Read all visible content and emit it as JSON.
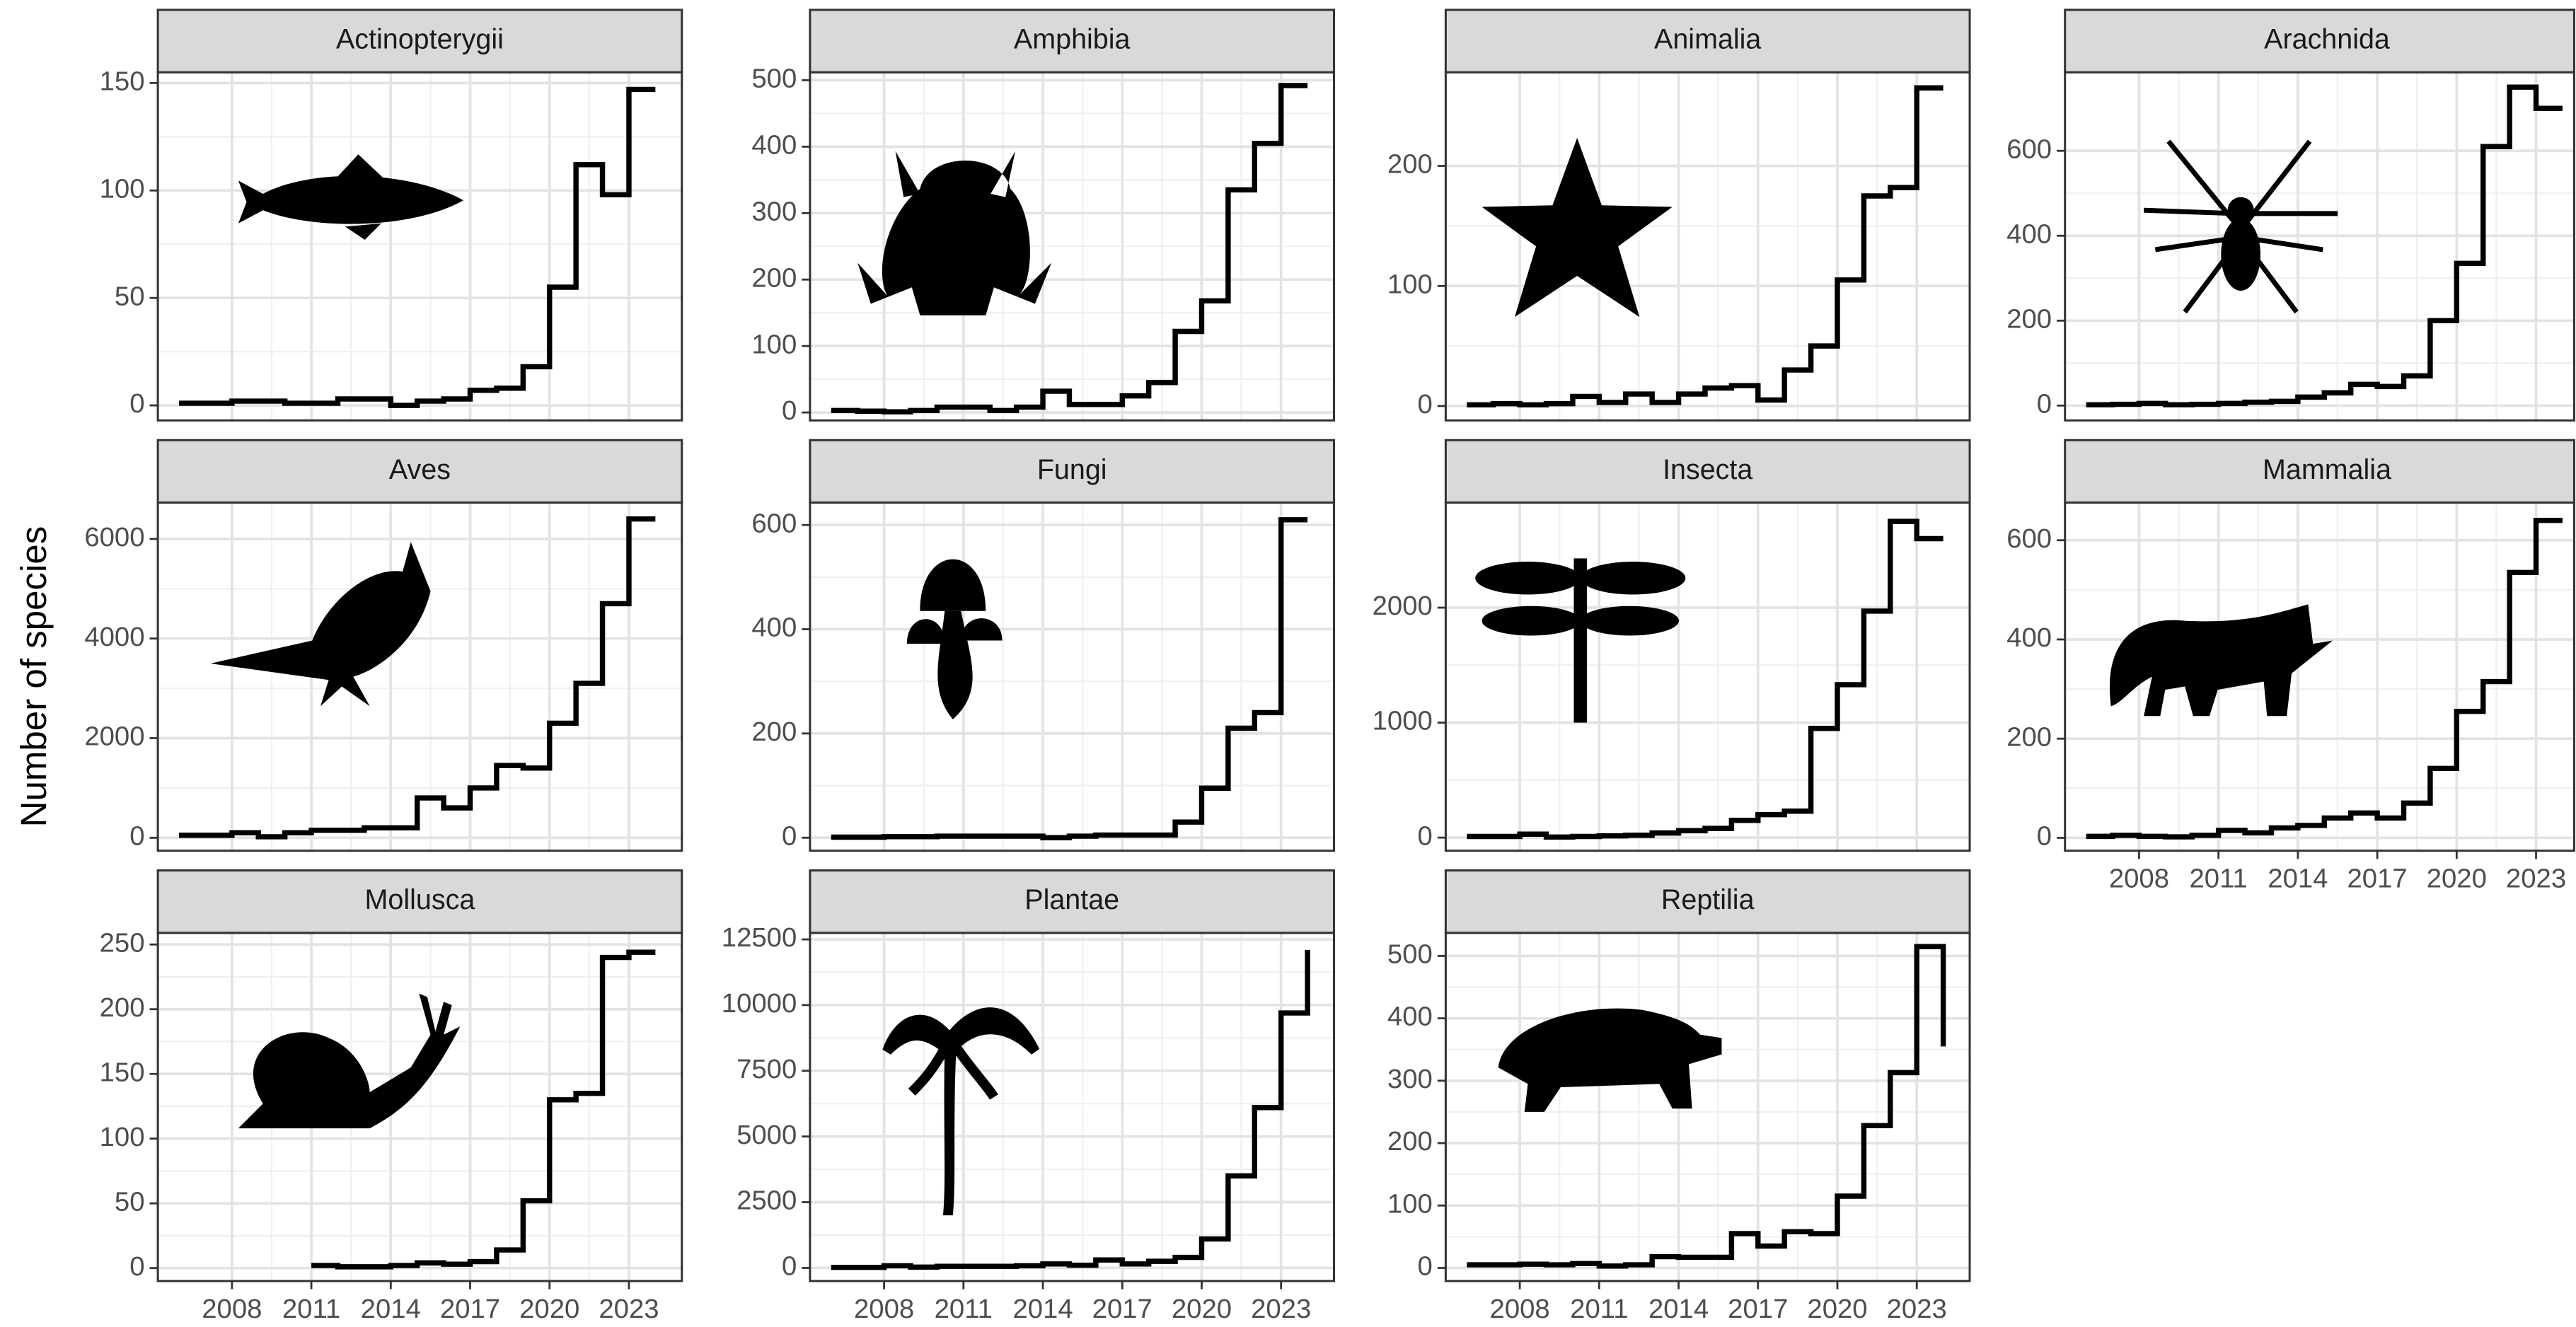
{
  "axis_title": "Number of species",
  "chart_data": [
    {
      "type": "line",
      "title": "Actinopterygii",
      "x": [
        2006,
        2007,
        2008,
        2009,
        2010,
        2011,
        2012,
        2013,
        2014,
        2015,
        2016,
        2017,
        2018,
        2019,
        2020,
        2021,
        2022,
        2023,
        2024
      ],
      "values": [
        1,
        1,
        2,
        2,
        1,
        1,
        3,
        3,
        0,
        2,
        3,
        7,
        8,
        18,
        55,
        112,
        98,
        147,
        147
      ],
      "color": "#000000",
      "xlim": [
        2005.2,
        2025.0
      ],
      "xticks": [
        2008,
        2011,
        2014,
        2017,
        2020,
        2023
      ],
      "ylim": [
        -7,
        155
      ],
      "yticks": [
        0,
        50,
        100,
        150
      ],
      "grid": true
    },
    {
      "type": "line",
      "title": "Amphibia",
      "x": [
        2006,
        2007,
        2008,
        2009,
        2010,
        2011,
        2012,
        2013,
        2014,
        2015,
        2016,
        2017,
        2018,
        2019,
        2020,
        2021,
        2022,
        2023,
        2024
      ],
      "values": [
        3,
        2,
        1,
        3,
        8,
        8,
        3,
        8,
        32,
        12,
        12,
        25,
        45,
        122,
        168,
        335,
        405,
        492,
        492
      ],
      "color": "#000000",
      "xlim": [
        2005.2,
        2025.0
      ],
      "xticks": [
        2008,
        2011,
        2014,
        2017,
        2020,
        2023
      ],
      "ylim": [
        -12,
        512
      ],
      "yticks": [
        0,
        100,
        200,
        300,
        400,
        500
      ],
      "grid": true
    },
    {
      "type": "line",
      "title": "Animalia",
      "x": [
        2006,
        2007,
        2008,
        2009,
        2010,
        2011,
        2012,
        2013,
        2014,
        2015,
        2016,
        2017,
        2018,
        2019,
        2020,
        2021,
        2022,
        2023,
        2024
      ],
      "values": [
        1,
        2,
        1,
        2,
        8,
        3,
        10,
        3,
        10,
        15,
        17,
        5,
        30,
        50,
        105,
        175,
        182,
        265,
        265
      ],
      "color": "#000000",
      "xlim": [
        2005.2,
        2025.0
      ],
      "xticks": [
        2008,
        2011,
        2014,
        2017,
        2020,
        2023
      ],
      "ylim": [
        -12,
        278
      ],
      "yticks": [
        0,
        100,
        200
      ],
      "grid": true
    },
    {
      "type": "line",
      "title": "Arachnida",
      "x": [
        2006,
        2007,
        2008,
        2009,
        2010,
        2011,
        2012,
        2013,
        2014,
        2015,
        2016,
        2017,
        2018,
        2019,
        2020,
        2021,
        2022,
        2023,
        2024
      ],
      "values": [
        2,
        3,
        5,
        2,
        3,
        5,
        8,
        10,
        20,
        30,
        50,
        45,
        70,
        200,
        335,
        610,
        750,
        700,
        700
      ],
      "color": "#000000",
      "xlim": [
        2005.2,
        2025.0
      ],
      "xticks": [
        2008,
        2011,
        2014,
        2017,
        2020,
        2023
      ],
      "ylim": [
        -35,
        785
      ],
      "yticks": [
        0,
        200,
        400,
        600
      ],
      "grid": true
    },
    {
      "type": "line",
      "title": "Aves",
      "x": [
        2006,
        2007,
        2008,
        2009,
        2010,
        2011,
        2012,
        2013,
        2014,
        2015,
        2016,
        2017,
        2018,
        2019,
        2020,
        2021,
        2022,
        2023,
        2024
      ],
      "values": [
        50,
        50,
        100,
        20,
        100,
        150,
        150,
        200,
        200,
        800,
        600,
        1000,
        1450,
        1400,
        2300,
        3100,
        4700,
        6400,
        6400
      ],
      "color": "#000000",
      "xlim": [
        2005.2,
        2025.0
      ],
      "xticks": [
        2008,
        2011,
        2014,
        2017,
        2020,
        2023
      ],
      "ylim": [
        -260,
        6730
      ],
      "yticks": [
        0,
        2000,
        4000,
        6000
      ],
      "grid": true
    },
    {
      "type": "line",
      "title": "Fungi",
      "x": [
        2006,
        2007,
        2008,
        2009,
        2010,
        2011,
        2012,
        2013,
        2014,
        2015,
        2016,
        2017,
        2018,
        2019,
        2020,
        2021,
        2022,
        2023,
        2024
      ],
      "values": [
        1,
        1,
        2,
        2,
        3,
        3,
        3,
        3,
        0,
        3,
        5,
        5,
        5,
        30,
        95,
        210,
        240,
        610,
        610
      ],
      "color": "#000000",
      "xlim": [
        2005.2,
        2025.0
      ],
      "xticks": [
        2008,
        2011,
        2014,
        2017,
        2020,
        2023
      ],
      "ylim": [
        -25,
        643
      ],
      "yticks": [
        0,
        200,
        400,
        600
      ],
      "grid": true
    },
    {
      "type": "line",
      "title": "Insecta",
      "x": [
        2006,
        2007,
        2008,
        2009,
        2010,
        2011,
        2012,
        2013,
        2014,
        2015,
        2016,
        2017,
        2018,
        2019,
        2020,
        2021,
        2022,
        2023,
        2024
      ],
      "values": [
        10,
        10,
        30,
        5,
        10,
        15,
        20,
        40,
        60,
        80,
        150,
        200,
        230,
        950,
        1330,
        1970,
        2750,
        2600,
        2600
      ],
      "color": "#000000",
      "xlim": [
        2005.2,
        2025.0
      ],
      "xticks": [
        2008,
        2011,
        2014,
        2017,
        2020,
        2023
      ],
      "ylim": [
        -114,
        2914
      ],
      "yticks": [
        0,
        1000,
        2000
      ],
      "grid": true
    },
    {
      "type": "line",
      "title": "Mammalia",
      "x": [
        2006,
        2007,
        2008,
        2009,
        2010,
        2011,
        2012,
        2013,
        2014,
        2015,
        2016,
        2017,
        2018,
        2019,
        2020,
        2021,
        2022,
        2023,
        2024
      ],
      "values": [
        3,
        5,
        3,
        2,
        5,
        15,
        10,
        20,
        25,
        40,
        50,
        40,
        70,
        140,
        255,
        315,
        535,
        640,
        640
      ],
      "color": "#000000",
      "xlim": [
        2005.2,
        2025.0
      ],
      "xticks": [
        2008,
        2011,
        2014,
        2017,
        2020,
        2023
      ],
      "ylim": [
        -26,
        676
      ],
      "yticks": [
        0,
        200,
        400,
        600
      ],
      "grid": true
    },
    {
      "type": "line",
      "title": "Mollusca",
      "x": [
        2006,
        2007,
        2008,
        2009,
        2010,
        2011,
        2012,
        2013,
        2014,
        2015,
        2016,
        2017,
        2018,
        2019,
        2020,
        2021,
        2022,
        2023,
        2024
      ],
      "values": [
        null,
        null,
        null,
        null,
        null,
        2,
        1,
        1,
        2,
        4,
        3,
        5,
        14,
        52,
        130,
        135,
        240,
        244,
        244
      ],
      "color": "#000000",
      "xlim": [
        2005.2,
        2025.0
      ],
      "xticks": [
        2008,
        2011,
        2014,
        2017,
        2020,
        2023
      ],
      "ylim": [
        -10,
        259
      ],
      "yticks": [
        0,
        50,
        100,
        150,
        200,
        250
      ],
      "grid": true
    },
    {
      "type": "line",
      "title": "Plantae",
      "x": [
        2006,
        2007,
        2008,
        2009,
        2010,
        2011,
        2012,
        2013,
        2014,
        2015,
        2016,
        2017,
        2018,
        2019,
        2020,
        2021,
        2022,
        2023,
        2024
      ],
      "values": [
        20,
        20,
        80,
        30,
        60,
        60,
        60,
        80,
        150,
        100,
        300,
        150,
        250,
        400,
        1100,
        3500,
        6100,
        9700,
        12100
      ],
      "color": "#000000",
      "xlim": [
        2005.2,
        2025.0
      ],
      "xticks": [
        2008,
        2011,
        2014,
        2017,
        2020,
        2023
      ],
      "ylim": [
        -500,
        12750
      ],
      "yticks": [
        0,
        2500,
        5000,
        7500,
        10000,
        12500
      ],
      "grid": true
    },
    {
      "type": "line",
      "title": "Reptilia",
      "x": [
        2006,
        2007,
        2008,
        2009,
        2010,
        2011,
        2012,
        2013,
        2014,
        2015,
        2016,
        2017,
        2018,
        2019,
        2020,
        2021,
        2022,
        2023,
        2024
      ],
      "values": [
        5,
        5,
        6,
        5,
        7,
        3,
        5,
        18,
        17,
        17,
        55,
        35,
        58,
        55,
        115,
        228,
        313,
        515,
        355
      ],
      "color": "#000000",
      "xlim": [
        2005.2,
        2025.0
      ],
      "xticks": [
        2008,
        2011,
        2014,
        2017,
        2020,
        2023
      ],
      "ylim": [
        -21,
        537
      ],
      "yticks": [
        0,
        100,
        200,
        300,
        400,
        500
      ],
      "grid": true
    }
  ]
}
